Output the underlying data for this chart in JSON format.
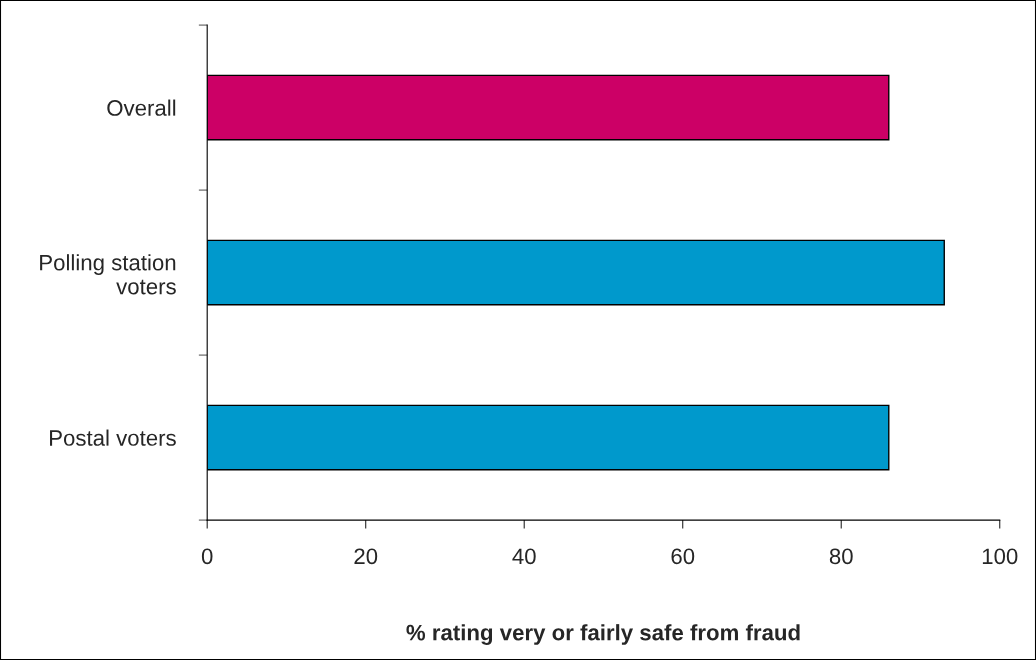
{
  "chart_data": {
    "type": "bar",
    "orientation": "horizontal",
    "xlabel": "% rating very or fairly safe from fraud",
    "categories": [
      "Overall",
      "Polling station\nvoters",
      "Postal voters"
    ],
    "values": [
      86,
      93,
      86
    ],
    "colors": [
      "#cc0066",
      "#0099cc",
      "#0099cc"
    ],
    "xlim": [
      0,
      100
    ],
    "xticks": [
      0,
      20,
      40,
      60,
      80,
      100
    ],
    "grid": false,
    "legend": false
  }
}
